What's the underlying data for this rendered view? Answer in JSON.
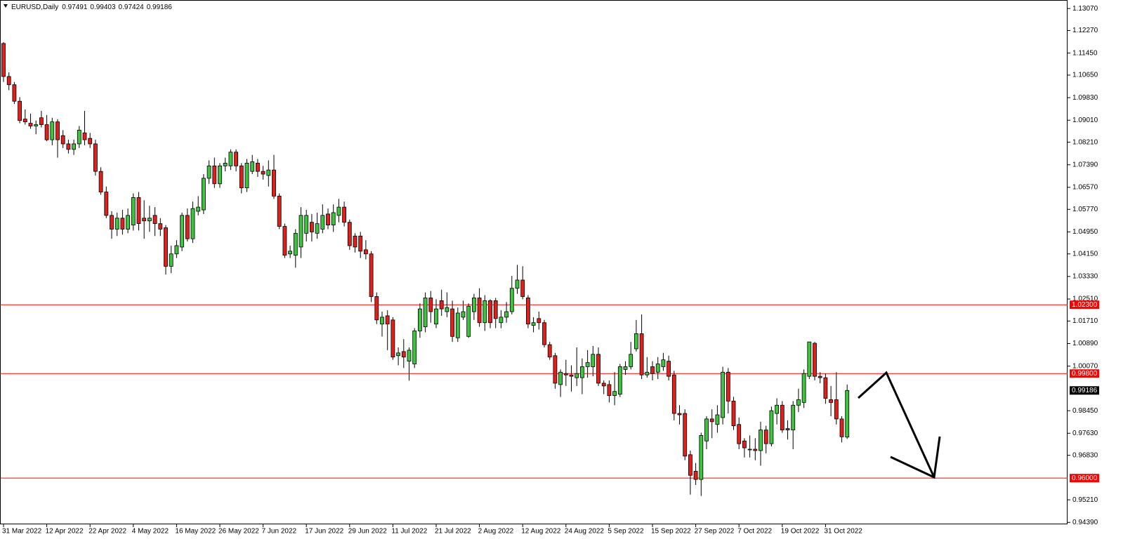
{
  "chart_data": {
    "type": "candlestick",
    "title": "EURUSD,Daily",
    "categories": [
      "31 Mar 2022",
      null,
      null,
      null,
      null,
      null,
      null,
      null,
      "12 Apr 2022",
      null,
      null,
      null,
      null,
      null,
      null,
      null,
      "22 Apr 2022",
      null,
      null,
      null,
      null,
      null,
      null,
      null,
      "4 May 2022",
      null,
      null,
      null,
      null,
      null,
      null,
      null,
      "16 May 2022",
      null,
      null,
      null,
      null,
      null,
      null,
      null,
      "26 May 2022",
      null,
      null,
      null,
      null,
      null,
      null,
      null,
      "7 Jun 2022",
      null,
      null,
      null,
      null,
      null,
      null,
      null,
      "17 Jun 2022",
      null,
      null,
      null,
      null,
      null,
      null,
      null,
      "29 Jun 2022",
      null,
      null,
      null,
      null,
      null,
      null,
      null,
      "11 Jul 2022",
      null,
      null,
      null,
      null,
      null,
      null,
      null,
      "21 Jul 2022",
      null,
      null,
      null,
      null,
      null,
      null,
      null,
      "2 Aug 2022",
      null,
      null,
      null,
      null,
      null,
      null,
      null,
      "12 Aug 2022",
      null,
      null,
      null,
      null,
      null,
      null,
      null,
      "24 Aug 2022",
      null,
      null,
      null,
      null,
      null,
      null,
      null,
      "5 Sep 2022",
      null,
      null,
      null,
      null,
      null,
      null,
      null,
      "15 Sep 2022",
      null,
      null,
      null,
      null,
      null,
      null,
      null,
      "27 Sep 2022",
      null,
      null,
      null,
      null,
      null,
      null,
      null,
      "7 Oct 2022",
      null,
      null,
      null,
      null,
      null,
      null,
      null,
      "19 Oct 2022",
      null,
      null,
      null,
      null,
      null,
      null,
      null,
      "31 Oct 2022",
      null,
      null,
      null,
      null
    ],
    "open": [
      1.118,
      1.106,
      1.103,
      1.097,
      1.0905,
      1.089,
      1.088,
      1.091,
      1.0885,
      1.083,
      1.0895,
      1.0845,
      1.0815,
      1.0795,
      1.0815,
      1.0855,
      1.0835,
      1.0815,
      1.0715,
      1.064,
      1.0555,
      1.0505,
      1.0545,
      1.0505,
      1.052,
      1.062,
      1.0545,
      1.0535,
      1.0555,
      1.0525,
      1.051,
      1.037,
      1.0415,
      1.044,
      1.0555,
      1.047,
      1.057,
      1.0575,
      1.069,
      1.0735,
      1.067,
      1.0735,
      1.0735,
      1.0785,
      1.0735,
      1.0655,
      1.0715,
      1.0745,
      1.0715,
      1.07,
      1.072,
      1.0625,
      1.0515,
      1.0415,
      1.041,
      1.044,
      1.049,
      1.053,
      1.049,
      1.0505,
      1.056,
      1.052,
      1.0555,
      1.0585,
      1.053,
      1.048,
      1.048,
      1.043,
      1.0415,
      1.026,
      1.016,
      1.019,
      1.0175,
      1.0045,
      1.006,
      1.0025,
      1.0015,
      1.0135,
      1.015,
      1.0255,
      1.016,
      1.0245,
      1.0205,
      1.0215,
      1.011,
      1.0185,
      1.0115,
      1.0205,
      1.0255,
      1.0165,
      1.0245,
      1.0245,
      1.0165,
      1.0185,
      1.0205,
      1.029,
      1.032,
      1.0255,
      1.0155,
      1.018,
      1.0165,
      1.0085,
      1.0045,
      0.994,
      0.998,
      0.9975,
      0.9965,
      0.9965,
      1.0005,
      1.0005,
      1.005,
      0.9945,
      0.994,
      0.99,
      0.9905,
      0.9995,
      1.0005,
      1.007,
      1.0125,
      0.9975,
      1.0005,
      0.9985,
      1.0005,
      1.0025,
      0.9975,
      0.9835,
      0.9835,
      0.9685,
      0.9625,
      0.9595,
      0.9735,
      0.9815,
      0.9795,
      0.982,
      0.9985,
      0.988,
      0.9795,
      0.9735,
      0.9705,
      0.9705,
      0.97,
      0.9775,
      0.9725,
      0.9835,
      0.9865,
      0.978,
      0.9775,
      0.9865,
      0.9875,
      0.997,
      1.009,
      0.997,
      0.9965,
      0.9885,
      0.9885,
      0.9815,
      0.97491
    ],
    "high": [
      1.1185,
      1.1075,
      1.104,
      1.0985,
      1.094,
      1.0925,
      1.09,
      1.0935,
      1.092,
      1.091,
      1.0905,
      1.0865,
      1.083,
      1.083,
      1.088,
      1.0935,
      1.0855,
      1.083,
      1.073,
      1.066,
      1.057,
      1.0565,
      1.0575,
      1.058,
      1.0635,
      1.064,
      1.061,
      1.059,
      1.0585,
      1.0545,
      1.052,
      1.0445,
      1.0465,
      1.0565,
      1.058,
      1.0605,
      1.0625,
      1.0705,
      1.0755,
      1.0765,
      1.0745,
      1.0765,
      1.0795,
      1.0795,
      1.0745,
      1.076,
      1.0775,
      1.076,
      1.0735,
      1.0755,
      1.0775,
      1.0635,
      1.0525,
      1.0445,
      1.0505,
      1.0585,
      1.0575,
      1.056,
      1.0565,
      1.0595,
      1.058,
      1.0595,
      1.0615,
      1.0605,
      1.054,
      1.049,
      1.0495,
      1.0465,
      1.0425,
      1.0275,
      1.0205,
      1.021,
      1.0185,
      1.0075,
      1.0105,
      1.0075,
      1.0145,
      1.0235,
      1.0275,
      1.028,
      1.025,
      1.0285,
      1.0275,
      1.0245,
      1.022,
      1.0245,
      1.0235,
      1.027,
      1.029,
      1.0265,
      1.025,
      1.0255,
      1.021,
      1.024,
      1.0335,
      1.0375,
      1.037,
      1.0265,
      1.0185,
      1.0205,
      1.0175,
      1.0095,
      1.0055,
      0.9995,
      1.003,
      1.001,
      1.0075,
      1.0035,
      1.0065,
      1.008,
      1.0075,
      0.9955,
      0.9955,
      0.9985,
      1.0015,
      1.0025,
      1.0095,
      1.0175,
      1.0195,
      1.004,
      1.0025,
      1.004,
      1.0055,
      1.0045,
      0.999,
      0.9865,
      0.985,
      0.97,
      0.9655,
      0.9765,
      0.9825,
      0.985,
      0.9865,
      1.0005,
      1.0,
      0.9895,
      0.982,
      0.9745,
      0.9755,
      0.9745,
      0.9805,
      0.979,
      0.986,
      0.989,
      0.988,
      0.981,
      0.988,
      0.9925,
      0.9995,
      1.0095,
      1.0095,
      0.9985,
      0.998,
      0.9935,
      0.9985,
      0.9825,
      0.99403
    ],
    "low": [
      1.104,
      1.101,
      1.096,
      1.089,
      1.0885,
      1.087,
      1.085,
      1.0875,
      1.0825,
      1.081,
      1.0765,
      1.08,
      1.078,
      1.0775,
      1.08,
      1.081,
      1.08,
      1.07,
      1.063,
      1.0545,
      1.047,
      1.048,
      1.0485,
      1.049,
      1.05,
      1.05,
      1.047,
      1.0495,
      1.048,
      1.048,
      1.034,
      1.0345,
      1.04,
      1.0425,
      1.046,
      1.0455,
      1.0555,
      1.056,
      1.067,
      1.0655,
      1.0655,
      1.0715,
      1.072,
      1.0715,
      1.0635,
      1.064,
      1.0705,
      1.0695,
      1.0685,
      1.066,
      1.0615,
      1.0505,
      1.04,
      1.04,
      1.0365,
      1.04,
      1.046,
      1.046,
      1.047,
      1.049,
      1.0505,
      1.0495,
      1.053,
      1.0515,
      1.043,
      1.042,
      1.04,
      1.0395,
      1.024,
      1.016,
      1.0115,
      1.0065,
      1.003,
      1.001,
      1.0,
      0.9954,
      1.0,
      1.011,
      1.013,
      1.0165,
      1.0145,
      1.019,
      1.0185,
      1.0095,
      1.0095,
      1.0175,
      1.011,
      1.0175,
      1.015,
      1.0135,
      1.0145,
      1.0145,
      1.0145,
      1.0165,
      1.0195,
      1.027,
      1.025,
      1.0145,
      1.013,
      1.014,
      1.0075,
      1.003,
      0.9925,
      0.9895,
      0.9935,
      0.9915,
      0.9935,
      0.9905,
      0.9965,
      0.997,
      0.9935,
      0.9905,
      0.9875,
      0.9865,
      0.9895,
      0.9975,
      0.9995,
      1.006,
      0.996,
      0.9965,
      0.9955,
      0.996,
      0.999,
      0.9955,
      0.981,
      0.9795,
      0.9665,
      0.954,
      0.9575,
      0.9535,
      0.9705,
      0.9745,
      0.9765,
      0.9795,
      0.9835,
      0.9775,
      0.9705,
      0.9675,
      0.9675,
      0.9665,
      0.9645,
      0.969,
      0.9715,
      0.9795,
      0.9765,
      0.974,
      0.9705,
      0.984,
      0.9855,
      0.996,
      0.9955,
      0.9945,
      0.987,
      0.9825,
      0.9795,
      0.973,
      0.97424
    ],
    "close": [
      1.106,
      1.103,
      1.097,
      1.09,
      1.0895,
      1.088,
      1.0885,
      1.0885,
      1.083,
      1.0895,
      1.083,
      1.0815,
      1.0795,
      1.0815,
      1.0865,
      1.083,
      1.0815,
      1.0715,
      1.064,
      1.0555,
      1.0505,
      1.0545,
      1.0505,
      1.0555,
      1.062,
      1.0525,
      1.0535,
      1.0545,
      1.0525,
      1.0505,
      1.037,
      1.0415,
      1.0445,
      1.0555,
      1.047,
      1.058,
      1.0585,
      1.069,
      1.0735,
      1.067,
      1.0735,
      1.0745,
      1.0785,
      1.0735,
      1.0655,
      1.0745,
      1.075,
      1.0715,
      1.0705,
      1.072,
      1.0625,
      1.0515,
      1.041,
      1.0425,
      1.049,
      1.0555,
      1.0555,
      1.0495,
      1.0525,
      1.0555,
      1.052,
      1.0565,
      1.0585,
      1.053,
      1.0445,
      1.044,
      1.0425,
      1.0415,
      1.026,
      1.0175,
      1.0185,
      1.016,
      1.004,
      1.0055,
      1.004,
      1.0065,
      1.0135,
      1.0215,
      1.0255,
      1.0205,
      1.0215,
      1.0215,
      1.022,
      1.0115,
      1.02,
      1.0205,
      1.0225,
      1.0255,
      1.0165,
      1.0245,
      1.0165,
      1.018,
      1.0185,
      1.0205,
      1.029,
      1.032,
      1.026,
      1.016,
      1.0165,
      1.0165,
      1.0085,
      1.004,
      0.9945,
      0.9985,
      0.9975,
      0.997,
      0.998,
      1.0005,
      1.002,
      1.005,
      0.9945,
      0.9935,
      0.99,
      0.9915,
      1.0005,
      1.0005,
      1.005,
      1.0125,
      0.9975,
      0.9985,
      0.998,
      1.0015,
      1.003,
      0.997,
      0.9835,
      0.983,
      0.968,
      0.961,
      0.9595,
      0.9755,
      0.9815,
      0.9805,
      0.983,
      0.9985,
      0.988,
      0.979,
      0.9725,
      0.971,
      0.9705,
      0.97,
      0.9775,
      0.9725,
      0.9845,
      0.9865,
      0.9775,
      0.9775,
      0.9865,
      0.9885,
      0.998,
      1.0095,
      0.997,
      0.9965,
      0.989,
      0.9875,
      0.9815,
      0.975,
      0.99186
    ],
    "up_color": "#3ec43e",
    "down_color": "#e0201c",
    "ylim": [
      0.9432,
      1.1338
    ],
    "yticks": [
      {
        "value": 1.1307,
        "label": "1.13070"
      },
      {
        "value": 1.1227,
        "label": "1.12270"
      },
      {
        "value": 1.1145,
        "label": "1.11450"
      },
      {
        "value": 1.1065,
        "label": "1.10650"
      },
      {
        "value": 1.0983,
        "label": "1.09830"
      },
      {
        "value": 1.0901,
        "label": "1.09010"
      },
      {
        "value": 1.0821,
        "label": "1.08210"
      },
      {
        "value": 1.0739,
        "label": "1.07390"
      },
      {
        "value": 1.0657,
        "label": "1.06570"
      },
      {
        "value": 1.0577,
        "label": "1.05770"
      },
      {
        "value": 1.0495,
        "label": "1.04950"
      },
      {
        "value": 1.0415,
        "label": "1.04150"
      },
      {
        "value": 1.0333,
        "label": "1.03330"
      },
      {
        "value": 1.0251,
        "label": "1.02510"
      },
      {
        "value": 1.0171,
        "label": "1.01710"
      },
      {
        "value": 1.0089,
        "label": "1.00890"
      },
      {
        "value": 1.0007,
        "label": "1.00070"
      },
      {
        "value": 0.9845,
        "label": "0.98450"
      },
      {
        "value": 0.9763,
        "label": "0.97630"
      },
      {
        "value": 0.9683,
        "label": "0.96830"
      },
      {
        "value": 0.9521,
        "label": "0.95210"
      },
      {
        "value": 0.9439,
        "label": "0.94390"
      }
    ],
    "hlines": [
      {
        "value": 1.023,
        "label": "1.02300",
        "color": "#ff0000"
      },
      {
        "value": 0.998,
        "label": "0.99800",
        "color": "#ff0000"
      },
      {
        "value": 0.96,
        "label": "0.96000",
        "color": "#ff0000"
      }
    ]
  }
}
